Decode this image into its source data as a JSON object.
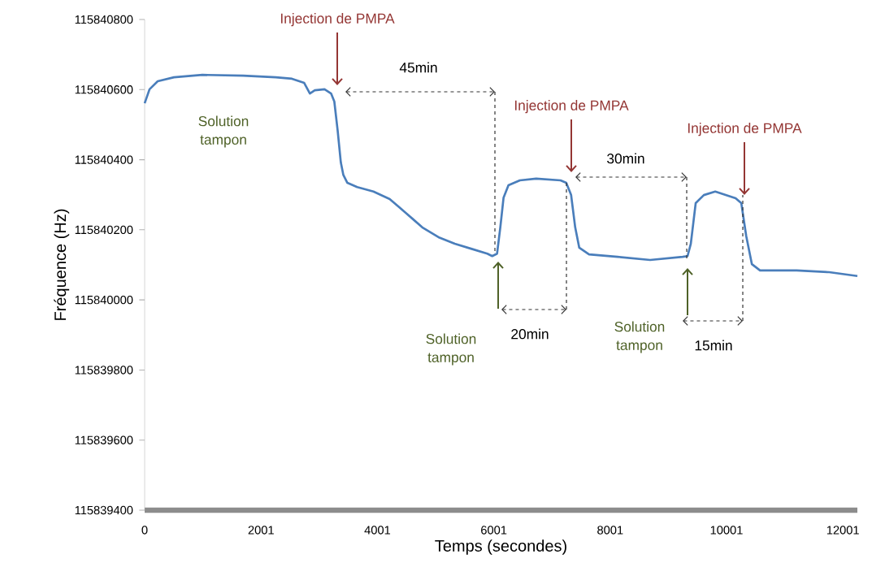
{
  "chart_data": {
    "type": "line",
    "xlabel": "Temps (secondes)",
    "ylabel": "Fréquence (Hz)",
    "x": [
      0,
      84,
      224,
      504,
      993,
      1693,
      2252,
      2532,
      2742,
      2840,
      2924,
      3092,
      3204,
      3260,
      3316,
      3372,
      3414,
      3484,
      3652,
      3932,
      4211,
      4491,
      4771,
      5050,
      5330,
      5610,
      5890,
      5973,
      6057,
      6113,
      6169,
      6253,
      6449,
      6729,
      7148,
      7246,
      7330,
      7400,
      7470,
      7638,
      8128,
      8688,
      9247,
      9331,
      9387,
      9471,
      9611,
      9807,
      10157,
      10255,
      10339,
      10437,
      10577,
      11206,
      11765,
      12250
    ],
    "series": [
      {
        "color": "#4a7ebb",
        "values": [
          115840561,
          115840601,
          115840624,
          115840635,
          115840642,
          115840640,
          115840635,
          115840631,
          115840619,
          115840589,
          115840598,
          115840601,
          115840589,
          115840566,
          115840485,
          115840392,
          115840357,
          115840334,
          115840322,
          115840309,
          115840288,
          115840248,
          115840207,
          115840179,
          115840160,
          115840146,
          115840132,
          115840125,
          115840132,
          115840207,
          115840292,
          115840327,
          115840341,
          115840346,
          115840341,
          115840334,
          115840299,
          115840207,
          115840149,
          115840130,
          115840123,
          115840114,
          115840123,
          115840125,
          115840160,
          115840276,
          115840299,
          115840309,
          115840290,
          115840276,
          115840183,
          115840102,
          115840084,
          115840084,
          115840079,
          115840068
        ]
      }
    ],
    "xlim": [
      0,
      12250
    ],
    "ylim": [
      115839400,
      115840800
    ],
    "xticks": [
      0,
      2001,
      4001,
      6001,
      8001,
      10001,
      12001
    ],
    "yticks": [
      115839400,
      115839600,
      115839800,
      115840000,
      115840200,
      115840400,
      115840600,
      115840800
    ],
    "annotations": [
      "Injection de PMPA",
      "Injection de PMPA",
      "Injection de PMPA",
      "Solution tampon",
      "Solution tampon",
      "45min",
      "20min",
      "30min",
      "15min",
      "Solution tampon"
    ]
  }
}
